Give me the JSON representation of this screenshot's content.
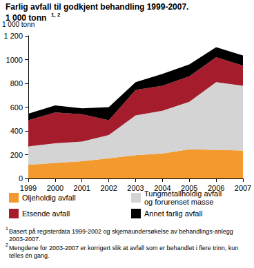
{
  "chart_data": {
    "type": "area",
    "title": "Farlig avfall til godkjent behandling 1999-2007.",
    "subtitle": "1 000 tonn",
    "subtitle_superscript": "1, 2",
    "y_label": "1 000 tonn",
    "stacked": true,
    "grid": false,
    "legend": "bottom",
    "categories": [
      "1999",
      "2000",
      "2001",
      "2002",
      "2003",
      "2004",
      "2005",
      "2006",
      "2007"
    ],
    "series": [
      {
        "name": "Oljeholdig avfall",
        "color": "#f39a2e",
        "values": [
          115,
          130,
          145,
          170,
          195,
          210,
          245,
          240,
          235
        ]
      },
      {
        "name": "Tungmetallholdig avfall og forurenset masse",
        "color": "#d4d4d4",
        "values": [
          155,
          165,
          165,
          195,
          335,
          360,
          400,
          570,
          545
        ]
      },
      {
        "name": "Etsende avfall",
        "color": "#a51d2d",
        "values": [
          220,
          260,
          230,
          125,
          215,
          210,
          215,
          210,
          170
        ]
      },
      {
        "name": "Annet farlig avfall",
        "color": "#000000",
        "values": [
          55,
          60,
          50,
          110,
          65,
          100,
          100,
          85,
          85
        ]
      }
    ],
    "ylim": [
      0,
      1200
    ],
    "yticks": [
      0,
      200,
      400,
      600,
      800,
      1000,
      {
        "value": 1200,
        "label": "1 200"
      }
    ],
    "annotations": [
      {
        "marker": "1",
        "text": "Basert på registerdata 1999-2002 og skjemaundersøkelse av behandlings-anlegg 2003-2007."
      },
      {
        "marker": "2",
        "text": "Mengdene for 2003-2007 er korrigert slik at avfall som er behandlet i flere trinn, kun telles én gang."
      }
    ]
  }
}
